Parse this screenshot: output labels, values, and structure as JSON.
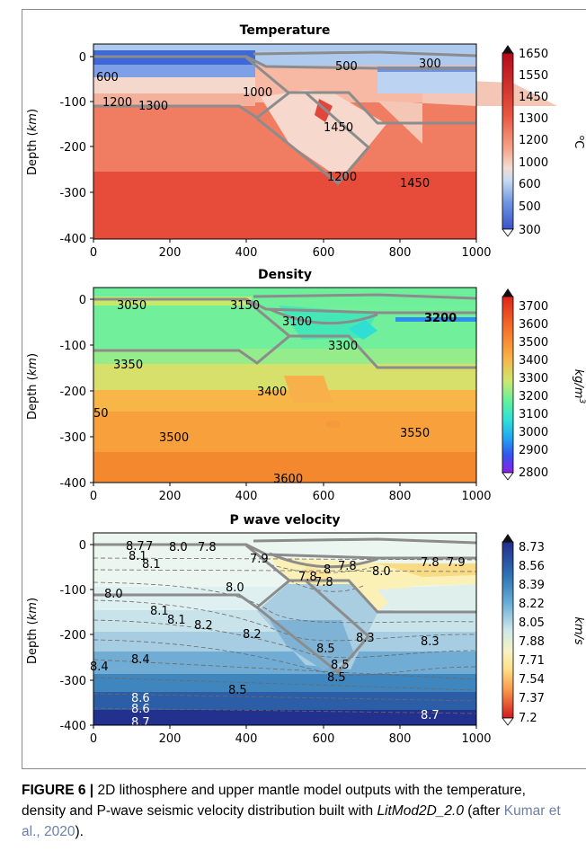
{
  "caption": {
    "label": "FIGURE 6 |",
    "text_before": "2D lithosphere and upper mantle model outputs with the temperature, density and P-wave seismic velocity distribution built with",
    "software": "LitMod2D_2.0",
    "after_open": "(after",
    "citation": "Kumar et al., 2020",
    "after_close": ")."
  },
  "chart_data": [
    {
      "type": "heatmap",
      "title": "Temperature",
      "ylabel": "Depth (km)",
      "xlim": [
        0,
        1000
      ],
      "ylim": [
        -400,
        0
      ],
      "xticks": [
        0,
        200,
        400,
        600,
        800,
        1000
      ],
      "yticks": [
        0,
        -100,
        -200,
        -300,
        -400
      ],
      "grid": false,
      "colorbar": {
        "label": "oC",
        "ticks": [
          1650,
          1550,
          1450,
          1300,
          1200,
          1000,
          600,
          500,
          300
        ]
      },
      "contour_labels": [
        {
          "text": "600",
          "x": 15,
          "y": -45
        },
        {
          "text": "500",
          "x": 640,
          "y": -22
        },
        {
          "text": "300",
          "x": 880,
          "y": -18
        },
        {
          "text": "1000",
          "x": 440,
          "y": -85
        },
        {
          "text": "1200",
          "x": 55,
          "y": -108
        },
        {
          "text": "1300",
          "x": 160,
          "y": -112
        },
        {
          "text": "1450",
          "x": 640,
          "y": -165
        },
        {
          "text": "1200",
          "x": 655,
          "y": -265
        },
        {
          "text": "1450",
          "x": 840,
          "y": -280
        }
      ]
    },
    {
      "type": "heatmap",
      "title": "Density",
      "ylabel": "Depth (km)",
      "xlim": [
        0,
        1000
      ],
      "ylim": [
        -400,
        0
      ],
      "xticks": [
        0,
        200,
        400,
        600,
        800,
        1000
      ],
      "yticks": [
        0,
        -100,
        -200,
        -300,
        -400
      ],
      "grid": false,
      "colorbar": {
        "label": "kg/m3",
        "ticks": [
          3700,
          3600,
          3500,
          3400,
          3300,
          3200,
          3100,
          3000,
          2900,
          2800
        ]
      },
      "contour_labels": [
        {
          "text": "3050",
          "x": 80,
          "y": -10
        },
        {
          "text": "3150",
          "x": 400,
          "y": -10
        },
        {
          "text": "3100",
          "x": 535,
          "y": -45
        },
        {
          "text": "3200",
          "x": 885,
          "y": -40
        },
        {
          "text": "3300",
          "x": 680,
          "y": -95
        },
        {
          "text": "3350",
          "x": 100,
          "y": -140
        },
        {
          "text": "3400",
          "x": 490,
          "y": -200
        },
        {
          "text": "50",
          "x": 15,
          "y": -250
        },
        {
          "text": "3500",
          "x": 220,
          "y": -290
        },
        {
          "text": "3550",
          "x": 850,
          "y": -280
        },
        {
          "text": "3600",
          "x": 560,
          "y": -385
        }
      ]
    },
    {
      "type": "heatmap",
      "title": "P wave velocity",
      "ylabel": "Depth (km)",
      "xlim": [
        0,
        1000
      ],
      "ylim": [
        -400,
        0
      ],
      "xticks": [
        0,
        200,
        400,
        600,
        800,
        1000
      ],
      "yticks": [
        0,
        -100,
        -200,
        -300,
        -400
      ],
      "grid": false,
      "colorbar": {
        "label": "km/s",
        "ticks": [
          8.73,
          8.56,
          8.39,
          8.22,
          8.05,
          7.88,
          7.71,
          7.54,
          7.37,
          7.2
        ]
      },
      "contour_labels": [
        {
          "text": "8.7",
          "x": 110,
          "y": -5
        },
        {
          "text": "7",
          "x": 145,
          "y": -5
        },
        {
          "text": "8.0",
          "x": 230,
          "y": -5
        },
        {
          "text": "7.8",
          "x": 310,
          "y": -5
        },
        {
          "text": "8.1",
          "x": 100,
          "y": -25
        },
        {
          "text": "8.1",
          "x": 160,
          "y": -40
        },
        {
          "text": "7.9",
          "x": 440,
          "y": -30
        },
        {
          "text": "7.8",
          "x": 560,
          "y": -65
        },
        {
          "text": "8",
          "x": 610,
          "y": -55
        },
        {
          "text": "7.8",
          "x": 665,
          "y": -45
        },
        {
          "text": "7.8",
          "x": 620,
          "y": -75
        },
        {
          "text": "8.0",
          "x": 755,
          "y": -55
        },
        {
          "text": "7.8",
          "x": 890,
          "y": -40
        },
        {
          "text": "7.9",
          "x": 950,
          "y": -40
        },
        {
          "text": "8.0",
          "x": 60,
          "y": -105
        },
        {
          "text": "8.0",
          "x": 370,
          "y": -95
        },
        {
          "text": "8.1",
          "x": 180,
          "y": -140
        },
        {
          "text": "8.1",
          "x": 220,
          "y": -165
        },
        {
          "text": "8.2",
          "x": 300,
          "y": -175
        },
        {
          "text": "8.2",
          "x": 420,
          "y": -200
        },
        {
          "text": "8.3",
          "x": 720,
          "y": -210
        },
        {
          "text": "8.3",
          "x": 880,
          "y": -215
        },
        {
          "text": "8.5",
          "x": 615,
          "y": -240
        },
        {
          "text": "8.4",
          "x": 130,
          "y": -265
        },
        {
          "text": "8.4",
          "x": 15,
          "y": -280
        },
        {
          "text": "8.5",
          "x": 650,
          "y": -275
        },
        {
          "text": "8.5",
          "x": 645,
          "y": -300
        },
        {
          "text": "8.5",
          "x": 385,
          "y": -330
        },
        {
          "text": "8.6",
          "x": 130,
          "y": -345
        },
        {
          "text": "8.6",
          "x": 130,
          "y": -365
        },
        {
          "text": "8.7",
          "x": 130,
          "y": -390
        },
        {
          "text": "8.7",
          "x": 880,
          "y": -380
        }
      ]
    }
  ]
}
